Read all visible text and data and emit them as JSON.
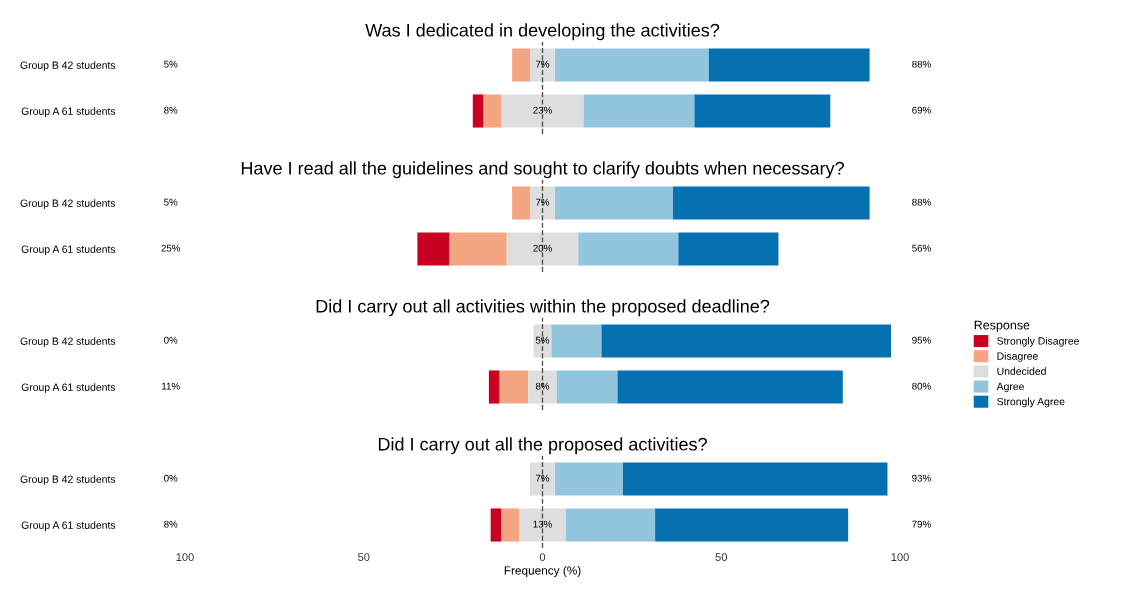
{
  "chart_data": [
    {
      "type": "bar",
      "orientation": "horizontal",
      "title": "Was I dedicated in developing the activities?",
      "categories": [
        "Group B 42 students",
        "Group A 61 students"
      ],
      "xlim": [
        -100,
        100
      ],
      "tick_labels": "y",
      "grid": false,
      "series": [
        {
          "color": "#ca0020",
          "values": [
            null,
            3
          ],
          "base": [
            null,
            -19.5
          ]
        },
        {
          "color": "#f4a582",
          "values": [
            5,
            5
          ],
          "base": [
            -8.5,
            -16.5
          ]
        },
        {
          "color": "#dedede",
          "values": [
            7,
            23
          ],
          "base": [
            -3.5,
            -11.5
          ]
        },
        {
          "color": "#92c5de",
          "values": [
            43,
            31
          ],
          "base": [
            3.5,
            11.5
          ]
        },
        {
          "color": "#0571b0",
          "values": [
            45,
            38
          ],
          "base": [
            46.5,
            42.5
          ]
        }
      ],
      "annotations": [
        "5%",
        "7%",
        "88%",
        "8%",
        "23%",
        "69%"
      ],
      "ref_lines": [
        {
          "axis": "x",
          "value": 0,
          "color": "#555555",
          "line_style": "dashed"
        }
      ]
    },
    {
      "type": "bar",
      "orientation": "horizontal",
      "title": "Have I read all the guidelines and sought to clarify doubts when necessary?",
      "categories": [
        "Group B 42 students",
        "Group A 61 students"
      ],
      "xlim": [
        -100,
        100
      ],
      "tick_labels": "y",
      "grid": false,
      "series": [
        {
          "color": "#ca0020",
          "values": [
            null,
            9
          ],
          "base": [
            null,
            -35
          ]
        },
        {
          "color": "#f4a582",
          "values": [
            5,
            16
          ],
          "base": [
            -8.5,
            -26
          ]
        },
        {
          "color": "#dedede",
          "values": [
            7,
            20
          ],
          "base": [
            -3.5,
            -10
          ]
        },
        {
          "color": "#92c5de",
          "values": [
            33,
            28
          ],
          "base": [
            3.5,
            10
          ]
        },
        {
          "color": "#0571b0",
          "values": [
            55,
            28
          ],
          "base": [
            36.5,
            38
          ]
        }
      ],
      "annotations": [
        "5%",
        "7%",
        "88%",
        "25%",
        "20%",
        "56%"
      ],
      "ref_lines": [
        {
          "axis": "x",
          "value": 0,
          "color": "#555555",
          "line_style": "dashed"
        }
      ]
    },
    {
      "type": "bar",
      "orientation": "horizontal",
      "title": "Did I carry out all activities within the proposed deadline?",
      "categories": [
        "Group B 42 students",
        "Group A 61 students"
      ],
      "xlim": [
        -100,
        100
      ],
      "tick_labels": "y",
      "grid": false,
      "legend": "right",
      "legend_title": "Response",
      "series": [
        {
          "name": "Strongly Disagree",
          "color": "#ca0020",
          "values": [
            null,
            3
          ],
          "base": [
            null,
            -15
          ]
        },
        {
          "name": "Disagree",
          "color": "#f4a582",
          "values": [
            null,
            8
          ],
          "base": [
            null,
            -12
          ]
        },
        {
          "name": "Undecided",
          "color": "#dedede",
          "values": [
            5,
            8
          ],
          "base": [
            -2.5,
            -4
          ]
        },
        {
          "name": "Agree",
          "color": "#92c5de",
          "values": [
            14,
            17
          ],
          "base": [
            2.5,
            4
          ]
        },
        {
          "name": "Strongly Agree",
          "color": "#0571b0",
          "values": [
            81,
            63
          ],
          "base": [
            16.5,
            21
          ]
        }
      ],
      "annotations": [
        "0%",
        "5%",
        "95%",
        "11%",
        "8%",
        "80%"
      ],
      "ref_lines": [
        {
          "axis": "x",
          "value": 0,
          "color": "#555555",
          "line_style": "dashed"
        }
      ]
    },
    {
      "type": "bar",
      "orientation": "horizontal",
      "title": "Did I carry out all the proposed activities?",
      "xlabel": "Frequency (%)",
      "categories": [
        "Group B 42 students",
        "Group A 61 students"
      ],
      "xlim": [
        -100,
        100
      ],
      "xticks": [
        {
          "value": -100,
          "label": "100"
        },
        {
          "value": -50,
          "label": "50"
        },
        0,
        50,
        100
      ],
      "grid": false,
      "series": [
        {
          "color": "#ca0020",
          "values": [
            null,
            3
          ],
          "base": [
            null,
            -14.5
          ]
        },
        {
          "color": "#f4a582",
          "values": [
            null,
            5
          ],
          "base": [
            null,
            -11.5
          ]
        },
        {
          "color": "#dedede",
          "values": [
            7,
            13
          ],
          "base": [
            -3.5,
            -6.5
          ]
        },
        {
          "color": "#92c5de",
          "values": [
            19,
            25
          ],
          "base": [
            3.5,
            6.5
          ]
        },
        {
          "color": "#0571b0",
          "values": [
            74,
            54
          ],
          "base": [
            22.5,
            31.5
          ]
        }
      ],
      "annotations": [
        "0%",
        "7%",
        "93%",
        "8%",
        "13%",
        "79%"
      ],
      "ref_lines": [
        {
          "axis": "x",
          "value": 0,
          "color": "#555555",
          "line_style": "dashed"
        }
      ]
    }
  ]
}
